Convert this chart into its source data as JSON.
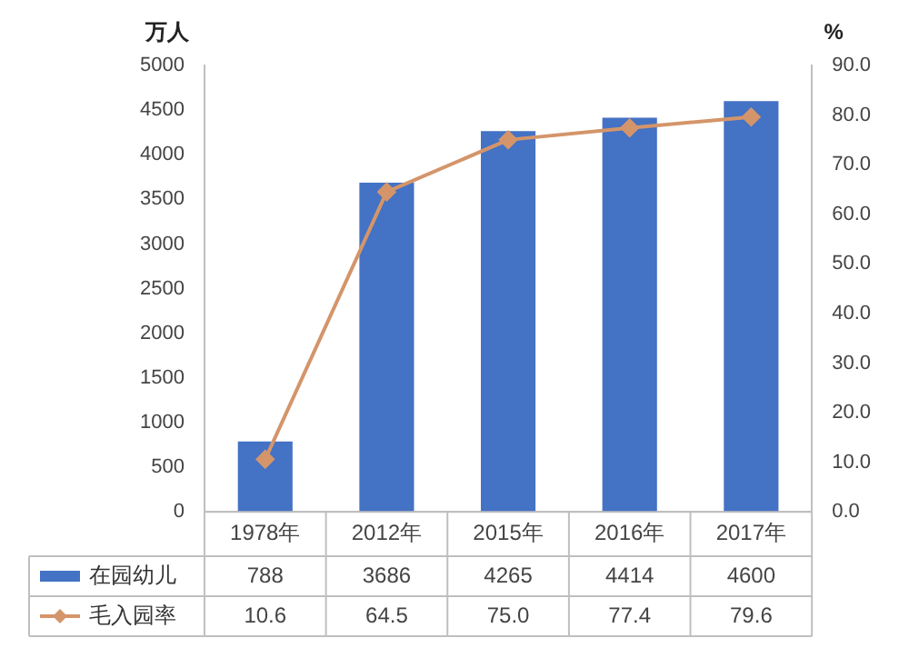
{
  "chart_data": {
    "type": "bar",
    "categories": [
      "1978年",
      "2012年",
      "2015年",
      "2016年",
      "2017年"
    ],
    "series": [
      {
        "name": "在园幼儿",
        "color": "#4472c4",
        "values": [
          788,
          3686,
          4265,
          4414,
          4600
        ]
      },
      {
        "name": "毛入园率",
        "type": "line",
        "axis": "y2",
        "color": "#d4956a",
        "marker": "diamond",
        "values": [
          10.6,
          64.5,
          75.0,
          77.4,
          79.6
        ]
      }
    ],
    "ylabel": "万人",
    "y2label": "%",
    "ylim": [
      0,
      5000
    ],
    "yticks": [
      0,
      500,
      1000,
      1500,
      2000,
      2500,
      3000,
      3500,
      4000,
      4500,
      5000
    ],
    "y2lim": [
      0,
      90
    ],
    "y2ticks": [
      {
        "value": 0,
        "label": "0.0"
      },
      {
        "value": 10,
        "label": "10.0"
      },
      {
        "value": 20,
        "label": "20.0"
      },
      {
        "value": 30,
        "label": "30.0"
      },
      {
        "value": 40,
        "label": "40.0"
      },
      {
        "value": 50,
        "label": "50.0"
      },
      {
        "value": 60,
        "label": "60.0"
      },
      {
        "value": 70,
        "label": "70.0"
      },
      {
        "value": 80,
        "label": "80.0"
      },
      {
        "value": 90,
        "label": "90.0"
      }
    ],
    "value_labels": [
      [
        "788",
        "3686",
        "4265",
        "4414",
        "4600"
      ],
      [
        "10.6",
        "64.5",
        "75.0",
        "77.4",
        "79.6"
      ]
    ],
    "grid": false,
    "legend": "bottom"
  }
}
